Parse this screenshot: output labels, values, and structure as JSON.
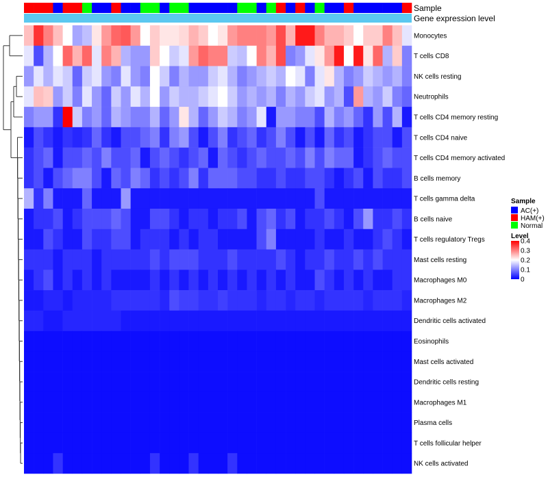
{
  "chart_data": {
    "type": "heatmap",
    "title": "",
    "annotation_labels": {
      "sample": "Sample",
      "gene": "Gene expression level"
    },
    "sample_colors": {
      "AC(+)": "#0000FF",
      "HAM(+)": "#FF0000",
      "Normal": "#00FF00"
    },
    "gene_level_color": "#5BC8F0",
    "column_groups": [
      "HAM(+)",
      "HAM(+)",
      "HAM(+)",
      "AC(+)",
      "HAM(+)",
      "HAM(+)",
      "Normal",
      "AC(+)",
      "AC(+)",
      "HAM(+)",
      "AC(+)",
      "AC(+)",
      "Normal",
      "Normal",
      "AC(+)",
      "Normal",
      "Normal",
      "AC(+)",
      "AC(+)",
      "AC(+)",
      "AC(+)",
      "AC(+)",
      "Normal",
      "Normal",
      "AC(+)",
      "Normal",
      "HAM(+)",
      "AC(+)",
      "HAM(+)",
      "AC(+)",
      "Normal",
      "AC(+)",
      "AC(+)",
      "HAM(+)",
      "AC(+)",
      "AC(+)",
      "AC(+)",
      "AC(+)",
      "AC(+)",
      "HAM(+)"
    ],
    "rows": [
      "Monocytes",
      "T cells CD8",
      "NK cells resting",
      "Neutrophils",
      "T cells CD4 memory resting",
      "T cells CD4 naive",
      "T cells CD4 memory activated",
      "B cells memory",
      "T cells gamma delta",
      "B cells naive",
      "T cells regulatory  Tregs",
      "Mast cells resting",
      "Macrophages M0",
      "Macrophages M2",
      "Dendritic cells activated",
      "Eosinophils",
      "Mast cells activated",
      "Dendritic cells resting",
      "Macrophages M1",
      "Plasma cells",
      "T cells follicular helper",
      "NK cells activated"
    ],
    "values": [
      [
        0.25,
        0.36,
        0.3,
        0.25,
        0.2,
        0.13,
        0.15,
        0.22,
        0.28,
        0.32,
        0.33,
        0.28,
        0.2,
        0.24,
        0.22,
        0.22,
        0.23,
        0.26,
        0.24,
        0.2,
        0.22,
        0.28,
        0.3,
        0.3,
        0.3,
        0.28,
        0.34,
        0.26,
        0.38,
        0.38,
        0.3,
        0.26,
        0.26,
        0.24,
        0.2,
        0.24,
        0.24,
        0.3,
        0.25,
        0.18
      ],
      [
        0.18,
        0.06,
        0.14,
        0.2,
        0.32,
        0.26,
        0.32,
        0.18,
        0.3,
        0.26,
        0.14,
        0.12,
        0.12,
        0.24,
        0.2,
        0.16,
        0.18,
        0.28,
        0.32,
        0.3,
        0.3,
        0.16,
        0.15,
        0.2,
        0.3,
        0.26,
        0.34,
        0.1,
        0.12,
        0.18,
        0.22,
        0.28,
        0.38,
        0.2,
        0.38,
        0.22,
        0.32,
        0.14,
        0.24,
        0.1
      ],
      [
        0.12,
        0.18,
        0.14,
        0.18,
        0.16,
        0.08,
        0.16,
        0.18,
        0.12,
        0.1,
        0.18,
        0.12,
        0.1,
        0.2,
        0.16,
        0.1,
        0.14,
        0.12,
        0.12,
        0.16,
        0.18,
        0.14,
        0.1,
        0.12,
        0.14,
        0.16,
        0.14,
        0.2,
        0.18,
        0.1,
        0.18,
        0.22,
        0.14,
        0.1,
        0.12,
        0.16,
        0.14,
        0.12,
        0.14,
        0.1
      ],
      [
        0.18,
        0.25,
        0.24,
        0.12,
        0.16,
        0.1,
        0.18,
        0.12,
        0.08,
        0.16,
        0.12,
        0.18,
        0.14,
        0.2,
        0.12,
        0.16,
        0.14,
        0.14,
        0.16,
        0.18,
        0.2,
        0.16,
        0.12,
        0.14,
        0.12,
        0.14,
        0.1,
        0.14,
        0.12,
        0.16,
        0.18,
        0.12,
        0.14,
        0.06,
        0.28,
        0.14,
        0.12,
        0.16,
        0.1,
        0.08
      ],
      [
        0.1,
        0.12,
        0.12,
        0.04,
        0.4,
        0.16,
        0.1,
        0.12,
        0.08,
        0.14,
        0.12,
        0.1,
        0.1,
        0.14,
        0.08,
        0.12,
        0.22,
        0.14,
        0.08,
        0.12,
        0.16,
        0.14,
        0.1,
        0.12,
        0.18,
        0.02,
        0.12,
        0.12,
        0.1,
        0.1,
        0.06,
        0.14,
        0.1,
        0.12,
        0.08,
        0.04,
        0.12,
        0.06,
        0.14,
        0.02
      ],
      [
        0.02,
        0.06,
        0.04,
        0.02,
        0.04,
        0.03,
        0.04,
        0.08,
        0.04,
        0.02,
        0.06,
        0.06,
        0.08,
        0.1,
        0.04,
        0.1,
        0.12,
        0.06,
        0.02,
        0.06,
        0.1,
        0.04,
        0.06,
        0.08,
        0.04,
        0.06,
        0.1,
        0.06,
        0.02,
        0.06,
        0.02,
        0.08,
        0.04,
        0.06,
        0.02,
        0.04,
        0.06,
        0.06,
        0.02,
        0.06
      ],
      [
        0.04,
        0.06,
        0.08,
        0.02,
        0.06,
        0.06,
        0.08,
        0.06,
        0.1,
        0.06,
        0.06,
        0.08,
        0.02,
        0.06,
        0.08,
        0.06,
        0.04,
        0.06,
        0.08,
        0.02,
        0.08,
        0.06,
        0.04,
        0.06,
        0.08,
        0.06,
        0.06,
        0.08,
        0.06,
        0.1,
        0.06,
        0.1,
        0.08,
        0.08,
        0.02,
        0.04,
        0.06,
        0.08,
        0.06,
        0.06
      ],
      [
        0.04,
        0.06,
        0.02,
        0.06,
        0.08,
        0.1,
        0.1,
        0.06,
        0.02,
        0.08,
        0.06,
        0.1,
        0.08,
        0.04,
        0.06,
        0.04,
        0.06,
        0.1,
        0.04,
        0.08,
        0.08,
        0.08,
        0.06,
        0.06,
        0.04,
        0.04,
        0.06,
        0.04,
        0.04,
        0.06,
        0.06,
        0.04,
        0.02,
        0.04,
        0.06,
        0.02,
        0.06,
        0.04,
        0.04,
        0.06
      ],
      [
        0.14,
        0.04,
        0.1,
        0.02,
        0.02,
        0.02,
        0.08,
        0.02,
        0.02,
        0.02,
        0.12,
        0.02,
        0.02,
        0.02,
        0.02,
        0.02,
        0.02,
        0.02,
        0.02,
        0.02,
        0.02,
        0.02,
        0.02,
        0.02,
        0.02,
        0.02,
        0.02,
        0.02,
        0.02,
        0.02,
        0.06,
        0.02,
        0.02,
        0.02,
        0.02,
        0.02,
        0.02,
        0.02,
        0.02,
        0.02
      ],
      [
        0.02,
        0.04,
        0.04,
        0.06,
        0.02,
        0.04,
        0.06,
        0.06,
        0.06,
        0.08,
        0.06,
        0.02,
        0.02,
        0.06,
        0.06,
        0.04,
        0.02,
        0.04,
        0.04,
        0.02,
        0.04,
        0.04,
        0.06,
        0.02,
        0.06,
        0.08,
        0.04,
        0.06,
        0.02,
        0.04,
        0.04,
        0.06,
        0.04,
        0.02,
        0.06,
        0.12,
        0.04,
        0.04,
        0.06,
        0.04
      ],
      [
        0.02,
        0.02,
        0.06,
        0.04,
        0.02,
        0.02,
        0.06,
        0.04,
        0.04,
        0.06,
        0.06,
        0.02,
        0.04,
        0.04,
        0.04,
        0.02,
        0.04,
        0.02,
        0.04,
        0.04,
        0.02,
        0.02,
        0.02,
        0.02,
        0.06,
        0.1,
        0.02,
        0.02,
        0.02,
        0.02,
        0.04,
        0.02,
        0.02,
        0.04,
        0.02,
        0.02,
        0.04,
        0.06,
        0.04,
        0.02
      ],
      [
        0.04,
        0.04,
        0.04,
        0.02,
        0.04,
        0.04,
        0.04,
        0.02,
        0.04,
        0.04,
        0.04,
        0.04,
        0.04,
        0.06,
        0.04,
        0.06,
        0.06,
        0.06,
        0.04,
        0.04,
        0.04,
        0.06,
        0.04,
        0.04,
        0.04,
        0.04,
        0.06,
        0.04,
        0.02,
        0.04,
        0.04,
        0.06,
        0.04,
        0.04,
        0.06,
        0.04,
        0.06,
        0.04,
        0.04,
        0.04
      ],
      [
        0.02,
        0.04,
        0.06,
        0.02,
        0.04,
        0.02,
        0.04,
        0.02,
        0.04,
        0.02,
        0.02,
        0.02,
        0.02,
        0.04,
        0.02,
        0.04,
        0.02,
        0.04,
        0.02,
        0.04,
        0.02,
        0.04,
        0.02,
        0.04,
        0.02,
        0.04,
        0.02,
        0.04,
        0.02,
        0.02,
        0.06,
        0.04,
        0.02,
        0.04,
        0.02,
        0.04,
        0.02,
        0.02,
        0.04,
        0.04
      ],
      [
        0.02,
        0.02,
        0.03,
        0.03,
        0.02,
        0.03,
        0.03,
        0.03,
        0.03,
        0.04,
        0.04,
        0.04,
        0.04,
        0.04,
        0.03,
        0.06,
        0.05,
        0.05,
        0.04,
        0.04,
        0.05,
        0.04,
        0.04,
        0.04,
        0.03,
        0.04,
        0.04,
        0.03,
        0.04,
        0.04,
        0.03,
        0.04,
        0.04,
        0.04,
        0.04,
        0.03,
        0.04,
        0.04,
        0.04,
        0.03
      ],
      [
        0.03,
        0.03,
        0.02,
        0.02,
        0.03,
        0.03,
        0.03,
        0.03,
        0.03,
        0.03,
        0.02,
        0.02,
        0.02,
        0.02,
        0.02,
        0.02,
        0.02,
        0.02,
        0.02,
        0.02,
        0.02,
        0.02,
        0.02,
        0.02,
        0.02,
        0.02,
        0.02,
        0.02,
        0.02,
        0.02,
        0.02,
        0.02,
        0.02,
        0.02,
        0.02,
        0.02,
        0.02,
        0.02,
        0.02,
        0.02
      ],
      [
        0.01,
        0.01,
        0.01,
        0.01,
        0.01,
        0.01,
        0.01,
        0.01,
        0.01,
        0.01,
        0.01,
        0.01,
        0.01,
        0.01,
        0.01,
        0.01,
        0.01,
        0.01,
        0.01,
        0.01,
        0.01,
        0.01,
        0.01,
        0.01,
        0.01,
        0.01,
        0.01,
        0.01,
        0.01,
        0.01,
        0.01,
        0.01,
        0.01,
        0.01,
        0.01,
        0.01,
        0.01,
        0.01,
        0.01,
        0.01
      ],
      [
        0.01,
        0.01,
        0.01,
        0.01,
        0.01,
        0.01,
        0.01,
        0.01,
        0.01,
        0.01,
        0.01,
        0.01,
        0.01,
        0.01,
        0.01,
        0.01,
        0.01,
        0.01,
        0.01,
        0.01,
        0.01,
        0.01,
        0.01,
        0.01,
        0.01,
        0.01,
        0.01,
        0.01,
        0.01,
        0.01,
        0.01,
        0.01,
        0.01,
        0.01,
        0.01,
        0.01,
        0.01,
        0.01,
        0.01,
        0.01
      ],
      [
        0.01,
        0.01,
        0.01,
        0.01,
        0.01,
        0.01,
        0.01,
        0.01,
        0.01,
        0.01,
        0.01,
        0.01,
        0.01,
        0.01,
        0.01,
        0.01,
        0.01,
        0.01,
        0.01,
        0.01,
        0.01,
        0.01,
        0.01,
        0.01,
        0.01,
        0.01,
        0.01,
        0.01,
        0.01,
        0.01,
        0.01,
        0.01,
        0.01,
        0.01,
        0.01,
        0.01,
        0.01,
        0.01,
        0.01,
        0.01
      ],
      [
        0.01,
        0.01,
        0.01,
        0.01,
        0.01,
        0.01,
        0.01,
        0.01,
        0.01,
        0.01,
        0.01,
        0.01,
        0.01,
        0.01,
        0.01,
        0.01,
        0.01,
        0.01,
        0.01,
        0.01,
        0.01,
        0.01,
        0.01,
        0.01,
        0.01,
        0.01,
        0.01,
        0.01,
        0.01,
        0.01,
        0.01,
        0.01,
        0.01,
        0.01,
        0.01,
        0.01,
        0.01,
        0.01,
        0.01,
        0.01
      ],
      [
        0.01,
        0.01,
        0.01,
        0.01,
        0.01,
        0.01,
        0.01,
        0.01,
        0.01,
        0.01,
        0.01,
        0.01,
        0.01,
        0.01,
        0.01,
        0.01,
        0.01,
        0.01,
        0.01,
        0.01,
        0.01,
        0.01,
        0.01,
        0.01,
        0.01,
        0.01,
        0.01,
        0.01,
        0.01,
        0.01,
        0.01,
        0.01,
        0.01,
        0.01,
        0.01,
        0.01,
        0.01,
        0.01,
        0.01,
        0.01
      ],
      [
        0.01,
        0.01,
        0.01,
        0.01,
        0.01,
        0.01,
        0.01,
        0.01,
        0.01,
        0.01,
        0.01,
        0.01,
        0.01,
        0.01,
        0.01,
        0.01,
        0.01,
        0.01,
        0.01,
        0.01,
        0.01,
        0.01,
        0.01,
        0.01,
        0.01,
        0.01,
        0.01,
        0.01,
        0.01,
        0.01,
        0.01,
        0.01,
        0.01,
        0.01,
        0.01,
        0.01,
        0.01,
        0.01,
        0.01,
        0.01
      ],
      [
        0.01,
        0.01,
        0.01,
        0.04,
        0.01,
        0.01,
        0.01,
        0.01,
        0.01,
        0.01,
        0.01,
        0.01,
        0.01,
        0.04,
        0.01,
        0.01,
        0.01,
        0.04,
        0.01,
        0.01,
        0.01,
        0.04,
        0.01,
        0.01,
        0.01,
        0.01,
        0.01,
        0.01,
        0.01,
        0.01,
        0.01,
        0.01,
        0.01,
        0.01,
        0.01,
        0.01,
        0.01,
        0.01,
        0.01,
        0.01
      ]
    ],
    "color_scale": {
      "min": 0,
      "max": 0.4,
      "low_color": "#0000FF",
      "mid_color": "#FFFFFF",
      "high_color": "#FF0000",
      "mid_value": 0.2
    },
    "legend": {
      "sample_title": "Sample",
      "sample_entries": [
        "AC(+)",
        "HAM(+)",
        "Normal"
      ],
      "level_title": "Level",
      "level_ticks": [
        "0.4",
        "0.3",
        "0.2",
        "0.1",
        "0"
      ],
      "level_tick_values": [
        0.4,
        0.3,
        0.2,
        0.1,
        0
      ],
      "position": "right"
    },
    "dendrogram": "rows-left"
  }
}
